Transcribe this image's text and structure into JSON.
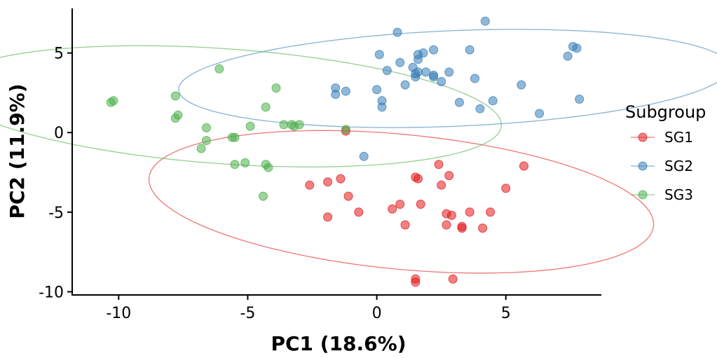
{
  "chart_data": {
    "type": "scatter",
    "xlabel": "PC1 (18.6%)",
    "ylabel": "PC2 (11.9%)",
    "xlim": [
      -11.8,
      8.7
    ],
    "ylim": [
      -10.2,
      7.8
    ],
    "xticks": [
      -10,
      -5,
      0,
      5
    ],
    "yticks": [
      -10,
      -5,
      0,
      5
    ],
    "grid": false,
    "legend": {
      "title": "Subgroup",
      "position": "right"
    },
    "series": [
      {
        "name": "SG1",
        "color": "#E41A1C",
        "ellipse": {
          "cx": 0.95,
          "cy": -4.35,
          "rx": 9.9,
          "ry": 4.2,
          "angle": -10
        },
        "points": [
          [
            -1.2,
            0.1
          ],
          [
            -2.6,
            -3.3
          ],
          [
            -1.9,
            -3.1
          ],
          [
            -1.4,
            -2.9
          ],
          [
            -1.1,
            -4.0
          ],
          [
            -0.7,
            -5.0
          ],
          [
            -1.9,
            -5.3
          ],
          [
            0.6,
            -4.8
          ],
          [
            0.9,
            -4.5
          ],
          [
            1.1,
            -5.8
          ],
          [
            1.5,
            -2.8
          ],
          [
            1.6,
            -2.9
          ],
          [
            1.7,
            -4.5
          ],
          [
            2.4,
            -2.0
          ],
          [
            2.5,
            -3.3
          ],
          [
            2.8,
            -2.7
          ],
          [
            2.7,
            -5.1
          ],
          [
            2.9,
            -5.2
          ],
          [
            2.7,
            -5.8
          ],
          [
            3.3,
            -5.9
          ],
          [
            3.3,
            -6.0
          ],
          [
            3.6,
            -5.0
          ],
          [
            4.1,
            -6.0
          ],
          [
            4.4,
            -5.0
          ],
          [
            5.0,
            -3.5
          ],
          [
            5.7,
            -2.1
          ],
          [
            1.5,
            -9.2
          ],
          [
            1.5,
            -9.4
          ],
          [
            2.95,
            -9.2
          ]
        ]
      },
      {
        "name": "SG2",
        "color": "#377EB8",
        "ellipse": {
          "cx": 3.0,
          "cy": 3.4,
          "rx": 10.7,
          "ry": 3.0,
          "angle": 4
        },
        "points": [
          [
            0.1,
            4.9
          ],
          [
            0.8,
            6.3
          ],
          [
            0.4,
            3.9
          ],
          [
            0.9,
            4.4
          ],
          [
            1.1,
            3.0
          ],
          [
            1.4,
            4.1
          ],
          [
            1.5,
            3.7
          ],
          [
            1.6,
            3.8
          ],
          [
            1.5,
            3.5
          ],
          [
            1.6,
            4.9
          ],
          [
            1.6,
            4.6
          ],
          [
            1.8,
            5.0
          ],
          [
            1.9,
            3.8
          ],
          [
            2.2,
            3.6
          ],
          [
            2.2,
            3.5
          ],
          [
            2.2,
            5.2
          ],
          [
            2.5,
            3.2
          ],
          [
            2.8,
            3.8
          ],
          [
            3.6,
            5.2
          ],
          [
            3.8,
            3.4
          ],
          [
            4.2,
            7.0
          ],
          [
            3.2,
            1.9
          ],
          [
            4.0,
            1.5
          ],
          [
            4.5,
            2.0
          ],
          [
            5.6,
            3.0
          ],
          [
            6.3,
            1.2
          ],
          [
            7.4,
            4.8
          ],
          [
            7.6,
            5.4
          ],
          [
            7.75,
            5.3
          ],
          [
            7.85,
            2.1
          ],
          [
            0.0,
            2.7
          ],
          [
            0.2,
            2.0
          ],
          [
            0.2,
            1.6
          ],
          [
            -1.6,
            2.4
          ],
          [
            -1.6,
            2.8
          ],
          [
            -1.2,
            2.6
          ],
          [
            -0.5,
            -1.5
          ]
        ]
      },
      {
        "name": "SG3",
        "color": "#4DAF4A",
        "ellipse": {
          "cx": -5.9,
          "cy": 1.65,
          "rx": 10.8,
          "ry": 3.6,
          "angle": -7
        },
        "points": [
          [
            -10.3,
            1.9
          ],
          [
            -10.2,
            2.0
          ],
          [
            -7.8,
            2.3
          ],
          [
            -7.7,
            1.1
          ],
          [
            -7.8,
            0.9
          ],
          [
            -6.6,
            0.3
          ],
          [
            -6.6,
            -0.5
          ],
          [
            -6.8,
            -1.0
          ],
          [
            -6.1,
            4.0
          ],
          [
            -5.6,
            -0.3
          ],
          [
            -5.5,
            -0.3
          ],
          [
            -5.5,
            -2.0
          ],
          [
            -5.1,
            -1.9
          ],
          [
            -4.9,
            0.4
          ],
          [
            -4.3,
            1.6
          ],
          [
            -4.3,
            -2.0
          ],
          [
            -4.2,
            -2.2
          ],
          [
            -4.4,
            -4.0
          ],
          [
            -3.9,
            2.8
          ],
          [
            -3.6,
            0.5
          ],
          [
            -3.3,
            0.5
          ],
          [
            -3.2,
            0.4
          ],
          [
            -3.0,
            0.5
          ],
          [
            -1.2,
            0.2
          ]
        ]
      }
    ]
  }
}
